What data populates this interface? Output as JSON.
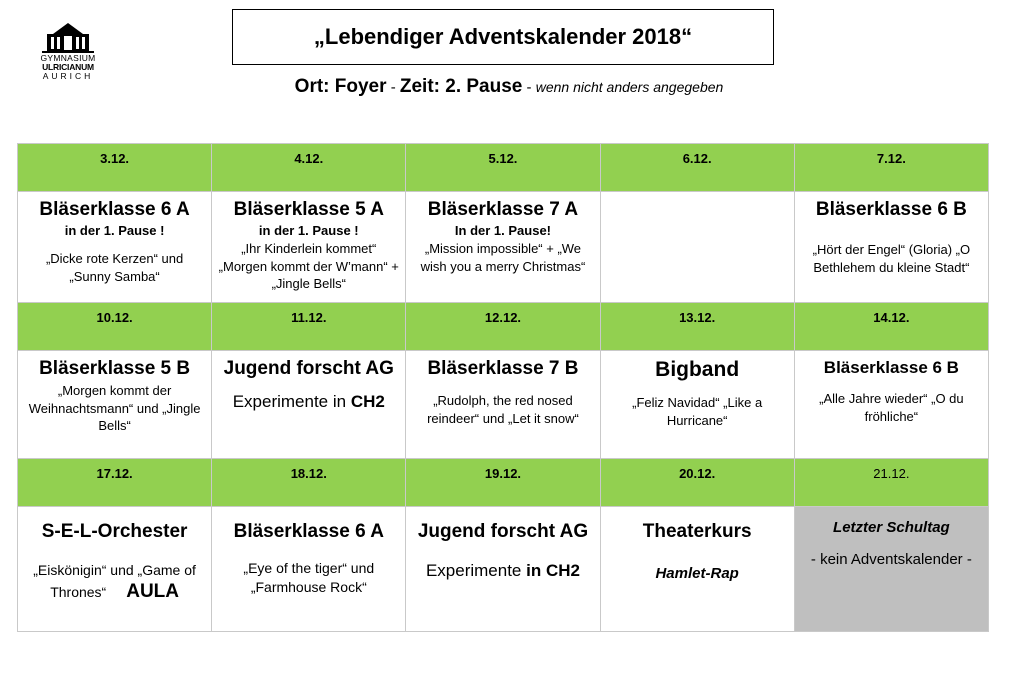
{
  "logo": {
    "line1": "GYMNASIUM",
    "line2": "ULRICIANUM",
    "line3": "AURICH"
  },
  "title": "„Lebendiger Adventskalender 2018“",
  "subtitle": {
    "place": "Ort: Foyer",
    "sep1": " - ",
    "time": "Zeit: 2. Pause",
    "sep2": " - ",
    "note": "wenn nicht anders angegeben"
  },
  "rows": [
    {
      "dates": [
        "3.12.",
        "4.12.",
        "5.12.",
        "6.12.",
        "7.12."
      ],
      "cells": [
        {
          "heading": "Bläserklasse 6 A",
          "pause": "in der 1. Pause !",
          "text": "„Dicke rote Kerzen“  und „Sunny Samba“"
        },
        {
          "heading": "Bläserklasse 5 A",
          "pause": "in der 1. Pause !",
          "text": "„Ihr Kinderlein kommet“ „Morgen kommt der W’mann“ + „Jingle Bells“"
        },
        {
          "heading": "Bläserklasse 7 A",
          "pause": "In der 1. Pause!",
          "text": "„Mission impossible“ + „We wish you a merry Christmas“"
        },
        {
          "heading": "",
          "pause": "",
          "text": ""
        },
        {
          "heading": "Bläserklasse 6 B",
          "pause": "",
          "text": "„Hört der Engel“ (Gloria) „O Bethlehem du kleine Stadt“"
        }
      ]
    },
    {
      "dates": [
        "10.12.",
        "11.12.",
        "12.12.",
        "13.12.",
        "14.12."
      ],
      "cells": [
        {
          "heading": "Bläserklasse 5 B",
          "text": "„Morgen kommt der Weihnachtsmann“ und „Jingle Bells“"
        },
        {
          "heading": "Jugend forscht AG",
          "text_pre": "Experimente in ",
          "text_bold": "CH2"
        },
        {
          "heading": "Bläserklasse 7 B",
          "text": "„Rudolph, the red nosed reindeer“ und „Let it snow“"
        },
        {
          "heading": "Bigband",
          "text": "„Feliz Navidad“ „Like a Hurricane“"
        },
        {
          "heading": "Bläserklasse 6 B",
          "text": "„Alle Jahre wieder“ „O du fröhliche“"
        }
      ]
    },
    {
      "dates": [
        "17.12.",
        "18.12.",
        "19.12.",
        "20.12.",
        "21.12."
      ],
      "cells": [
        {
          "heading": "S-E-L-Orchester",
          "text": "„Eiskönigin“ und „Game of Thrones“",
          "extra": "AULA"
        },
        {
          "heading": "Bläserklasse 6 A",
          "text": "„Eye of the tiger“ und „Farmhouse Rock“"
        },
        {
          "heading": "Jugend forscht AG",
          "text_pre": "Experimente ",
          "text_bold": "in CH2"
        },
        {
          "heading": "Theaterkurs",
          "subtitle": "Hamlet-Rap"
        },
        {
          "heading": "Letzter Schultag",
          "text": "- kein Adventskalender -"
        }
      ]
    }
  ]
}
